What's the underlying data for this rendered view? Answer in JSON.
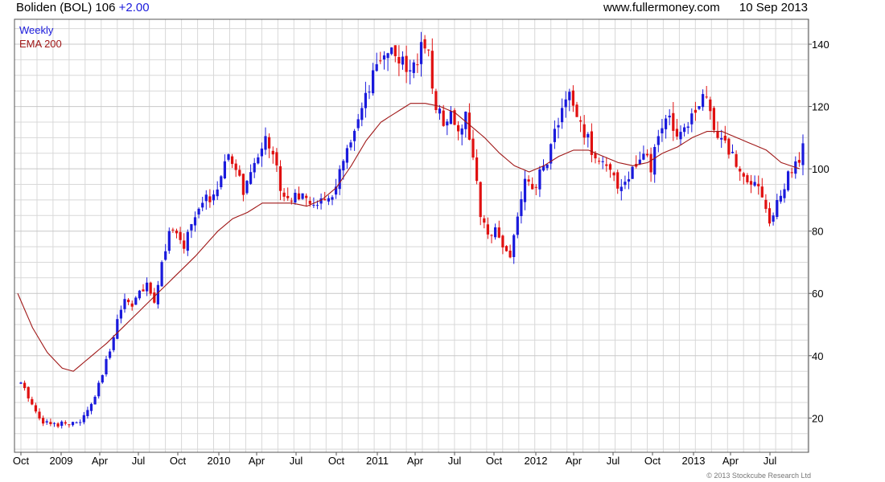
{
  "header": {
    "title": "Boliden (BOL)",
    "price": "106",
    "change": "+2.00",
    "source": "www.fullermoney.com",
    "date": "10 Sep 2013"
  },
  "footer": {
    "copyright": "© 2013 Stockcube Research Ltd"
  },
  "colors": {
    "up": "#1a1adc",
    "down": "#e01010",
    "ema": "#a01818",
    "grid": "#d8d8d8",
    "border": "#555555"
  },
  "chart_data": {
    "type": "candlestick",
    "title": "Boliden (BOL) 106 +2.00",
    "legend": [
      {
        "label": "Weekly",
        "color": "#1a1adc"
      },
      {
        "label": "EMA 200",
        "color": "#a01818"
      }
    ],
    "legend_position": "top-left",
    "ylim": [
      9,
      148
    ],
    "y_ticks": [
      20,
      40,
      60,
      80,
      100,
      120,
      140
    ],
    "grid": true,
    "y_axis_side": "right",
    "x_ticks": [
      "Oct",
      "2009",
      "Apr",
      "Jul",
      "Oct",
      "2010",
      "Apr",
      "Jul",
      "Oct",
      "2011",
      "Apr",
      "Jul",
      "Oct",
      "2012",
      "Apr",
      "Jul",
      "Oct",
      "2013",
      "Apr",
      "Jul"
    ],
    "close_keypoints": [
      [
        0,
        31
      ],
      [
        2,
        27
      ],
      [
        4,
        22
      ],
      [
        6,
        19
      ],
      [
        8,
        18
      ],
      [
        10,
        18
      ],
      [
        12,
        19
      ],
      [
        14,
        18
      ],
      [
        16,
        19
      ],
      [
        18,
        22
      ],
      [
        20,
        27
      ],
      [
        22,
        34
      ],
      [
        24,
        42
      ],
      [
        26,
        52
      ],
      [
        28,
        58
      ],
      [
        30,
        57
      ],
      [
        32,
        60
      ],
      [
        34,
        62
      ],
      [
        36,
        58
      ],
      [
        38,
        70
      ],
      [
        40,
        80
      ],
      [
        42,
        78
      ],
      [
        44,
        75
      ],
      [
        46,
        83
      ],
      [
        48,
        86
      ],
      [
        50,
        90
      ],
      [
        52,
        92
      ],
      [
        54,
        96
      ],
      [
        56,
        104
      ],
      [
        58,
        100
      ],
      [
        60,
        93
      ],
      [
        62,
        97
      ],
      [
        64,
        104
      ],
      [
        66,
        112
      ],
      [
        68,
        104
      ],
      [
        70,
        95
      ],
      [
        72,
        90
      ],
      [
        74,
        93
      ],
      [
        76,
        90
      ],
      [
        78,
        88
      ],
      [
        80,
        90
      ],
      [
        82,
        88
      ],
      [
        84,
        92
      ],
      [
        86,
        98
      ],
      [
        88,
        105
      ],
      [
        90,
        110
      ],
      [
        92,
        118
      ],
      [
        94,
        125
      ],
      [
        96,
        132
      ],
      [
        98,
        138
      ],
      [
        100,
        138
      ],
      [
        102,
        136
      ],
      [
        104,
        130
      ],
      [
        106,
        135
      ],
      [
        108,
        138
      ],
      [
        110,
        135
      ],
      [
        112,
        120
      ],
      [
        114,
        116
      ],
      [
        116,
        118
      ],
      [
        118,
        114
      ],
      [
        120,
        116
      ],
      [
        122,
        105
      ],
      [
        124,
        84
      ],
      [
        126,
        78
      ],
      [
        128,
        83
      ],
      [
        130,
        75
      ],
      [
        132,
        72
      ],
      [
        134,
        85
      ],
      [
        136,
        96
      ],
      [
        138,
        92
      ],
      [
        140,
        98
      ],
      [
        142,
        103
      ],
      [
        144,
        112
      ],
      [
        146,
        120
      ],
      [
        148,
        123
      ],
      [
        150,
        116
      ],
      [
        152,
        112
      ],
      [
        154,
        106
      ],
      [
        156,
        104
      ],
      [
        158,
        100
      ],
      [
        160,
        96
      ],
      [
        162,
        95
      ],
      [
        164,
        98
      ],
      [
        166,
        101
      ],
      [
        168,
        104
      ],
      [
        170,
        100
      ],
      [
        172,
        110
      ],
      [
        174,
        116
      ],
      [
        176,
        114
      ],
      [
        178,
        112
      ],
      [
        180,
        116
      ],
      [
        182,
        120
      ],
      [
        184,
        124
      ],
      [
        186,
        118
      ],
      [
        188,
        112
      ],
      [
        190,
        108
      ],
      [
        192,
        104
      ],
      [
        194,
        99
      ],
      [
        196,
        98
      ],
      [
        198,
        96
      ],
      [
        200,
        92
      ],
      [
        202,
        83
      ],
      [
        204,
        88
      ],
      [
        206,
        95
      ],
      [
        208,
        99
      ],
      [
        210,
        103
      ],
      [
        211,
        106
      ]
    ],
    "ema200_keypoints": [
      [
        0,
        60
      ],
      [
        4,
        49
      ],
      [
        8,
        41
      ],
      [
        12,
        36
      ],
      [
        15,
        35
      ],
      [
        20,
        40
      ],
      [
        24,
        44
      ],
      [
        30,
        51
      ],
      [
        36,
        58
      ],
      [
        42,
        65
      ],
      [
        48,
        72
      ],
      [
        54,
        80
      ],
      [
        58,
        84
      ],
      [
        62,
        86
      ],
      [
        66,
        89
      ],
      [
        70,
        89
      ],
      [
        74,
        89
      ],
      [
        78,
        88
      ],
      [
        82,
        90
      ],
      [
        86,
        94
      ],
      [
        90,
        101
      ],
      [
        94,
        109
      ],
      [
        98,
        115
      ],
      [
        102,
        118
      ],
      [
        106,
        121
      ],
      [
        110,
        121
      ],
      [
        114,
        120
      ],
      [
        118,
        118
      ],
      [
        122,
        114
      ],
      [
        126,
        110
      ],
      [
        130,
        105
      ],
      [
        134,
        101
      ],
      [
        138,
        99
      ],
      [
        142,
        101
      ],
      [
        146,
        104
      ],
      [
        150,
        106
      ],
      [
        154,
        106
      ],
      [
        158,
        104
      ],
      [
        162,
        102
      ],
      [
        166,
        101
      ],
      [
        170,
        102
      ],
      [
        174,
        105
      ],
      [
        178,
        107
      ],
      [
        182,
        110
      ],
      [
        186,
        112
      ],
      [
        190,
        112
      ],
      [
        194,
        110
      ],
      [
        198,
        108
      ],
      [
        202,
        106
      ],
      [
        206,
        102
      ],
      [
        211,
        100
      ]
    ]
  }
}
